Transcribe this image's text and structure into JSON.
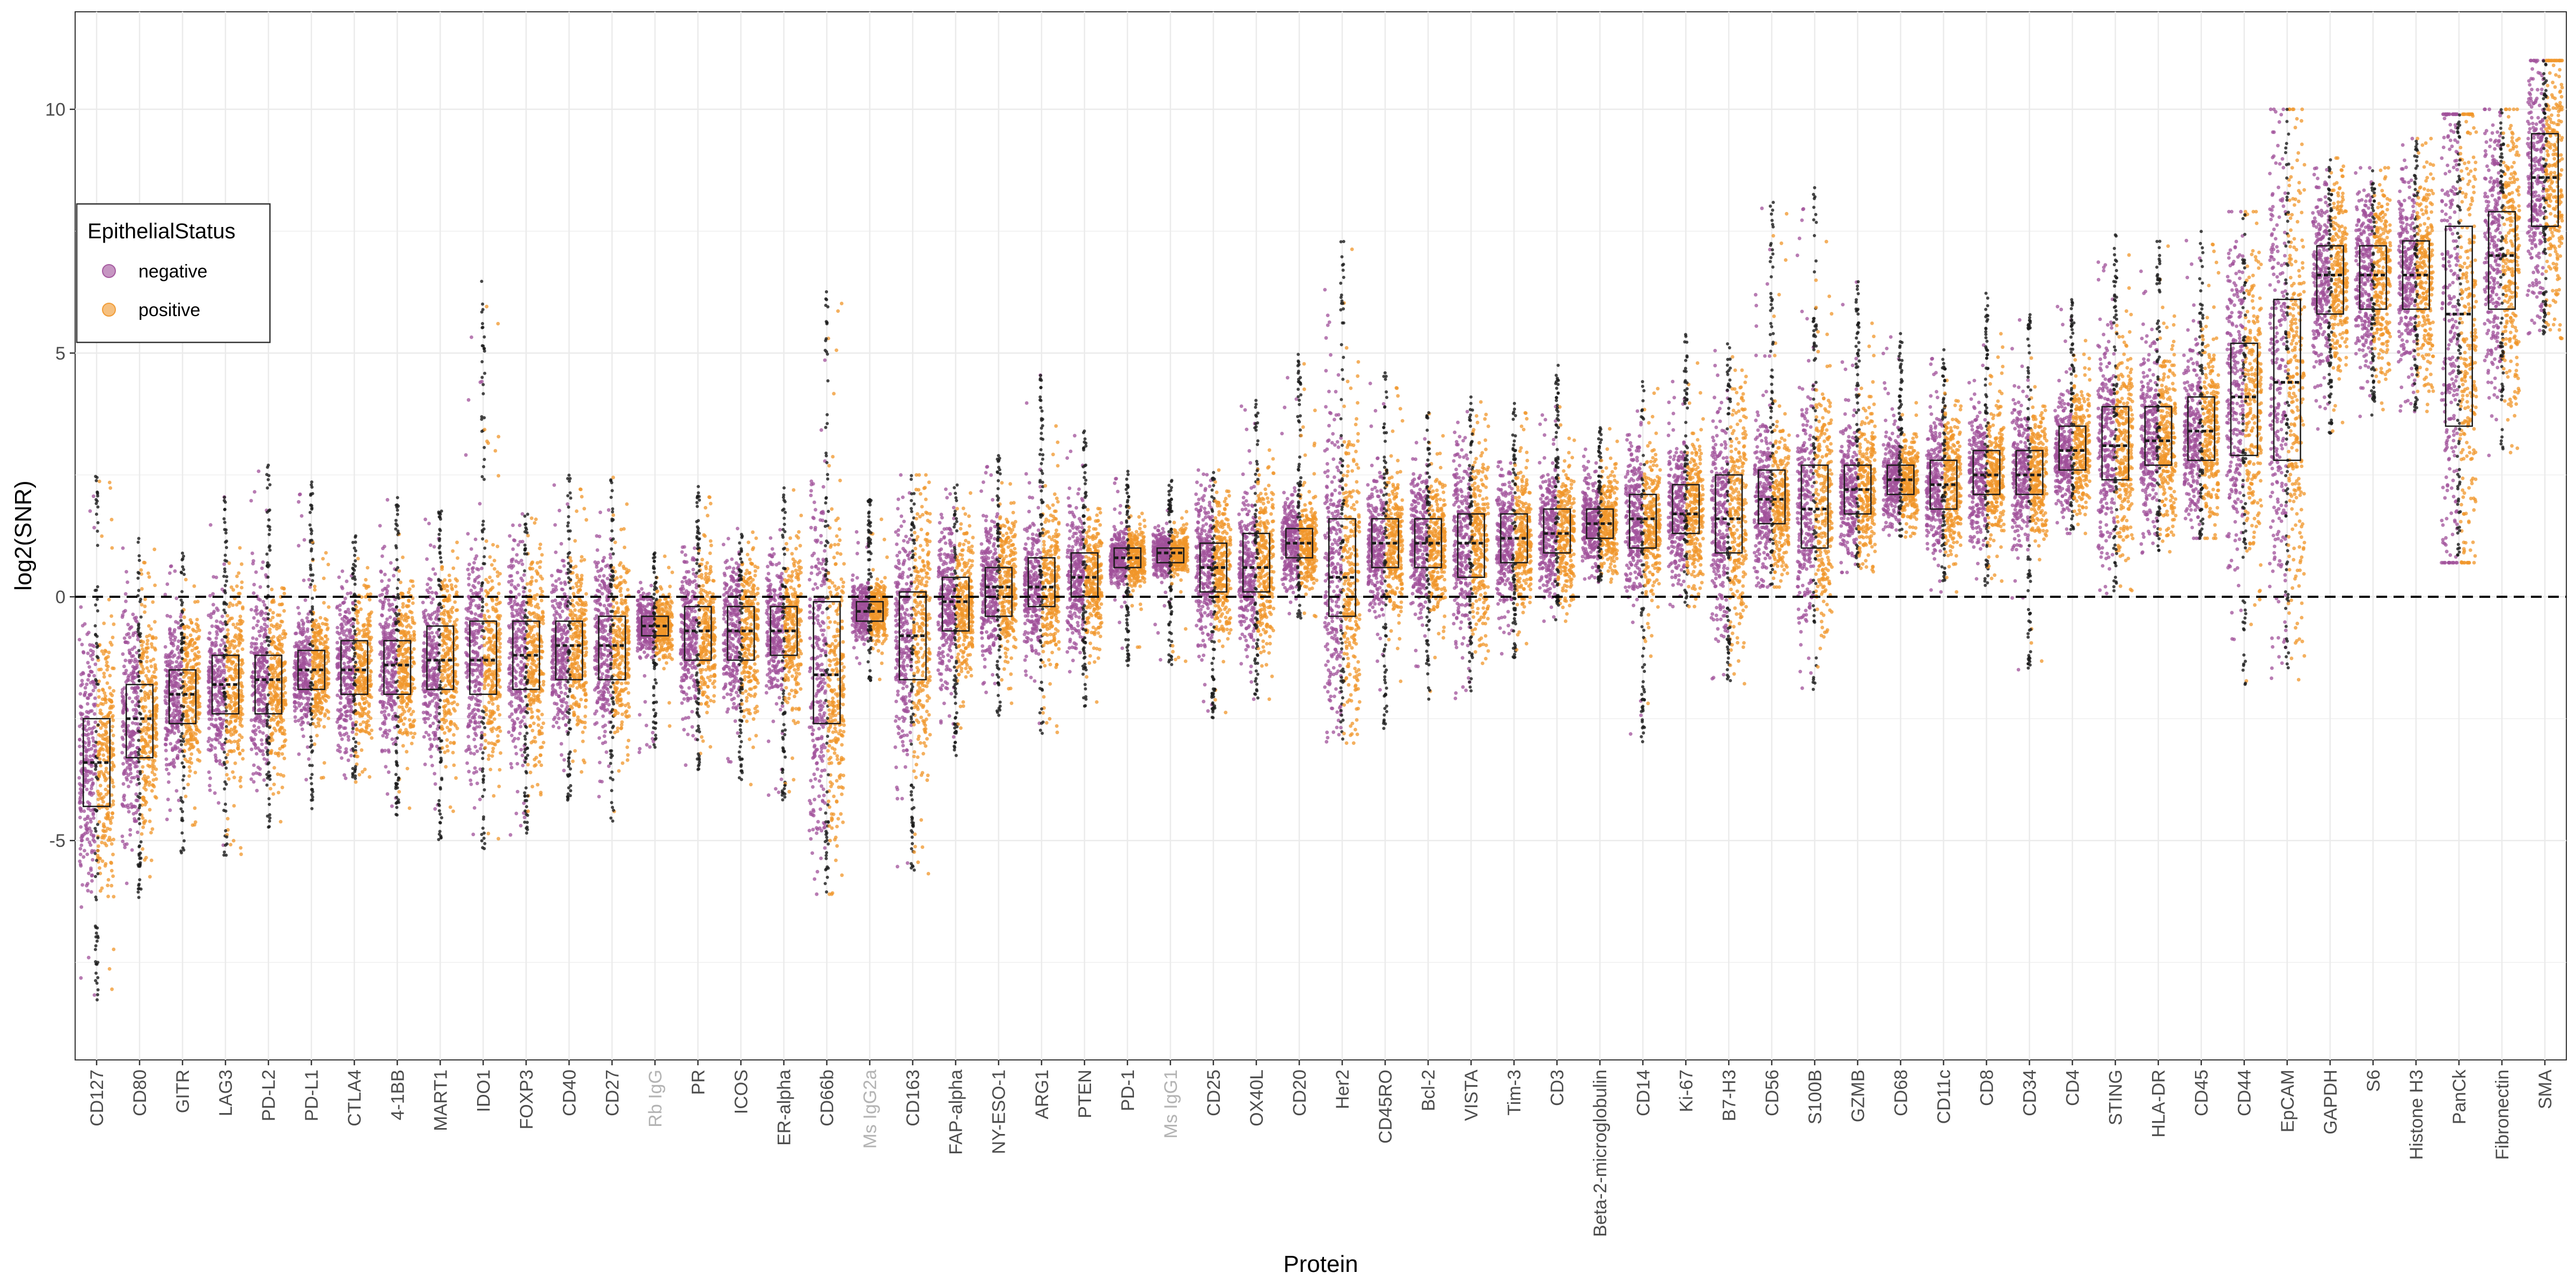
{
  "chart_data": {
    "type": "box-jitter",
    "xlabel": "Protein",
    "ylabel": "log2(SNR)",
    "ylim": [
      -9.5,
      12
    ],
    "yticks": [
      -5,
      0,
      5,
      10
    ],
    "ytick_labels": [
      "-5",
      "0",
      "5",
      "10"
    ],
    "reference_line": {
      "y": 0,
      "style": "dashed"
    },
    "grid": true,
    "legend": {
      "title": "EpithelialStatus",
      "placement": "left",
      "entries": [
        {
          "label": "negative",
          "color": "#a0509a"
        },
        {
          "label": "positive",
          "color": "#f0962a"
        }
      ]
    },
    "negative_control_color": "#b3b3b3",
    "categories": [
      {
        "name": "CD127",
        "q1": -4.3,
        "median": -3.4,
        "q3": -2.5,
        "min": -8.3,
        "max": 2.5
      },
      {
        "name": "CD80",
        "q1": -3.3,
        "median": -2.5,
        "q3": -1.8,
        "min": -6.2,
        "max": 1.2
      },
      {
        "name": "GITR",
        "q1": -2.6,
        "median": -2.0,
        "q3": -1.5,
        "min": -5.4,
        "max": 0.9
      },
      {
        "name": "LAG3",
        "q1": -2.4,
        "median": -1.8,
        "q3": -1.2,
        "min": -5.3,
        "max": 2.1
      },
      {
        "name": "PD-L2",
        "q1": -2.4,
        "median": -1.7,
        "q3": -1.2,
        "min": -4.8,
        "max": 2.7
      },
      {
        "name": "PD-L1",
        "q1": -1.9,
        "median": -1.5,
        "q3": -1.1,
        "min": -4.5,
        "max": 2.4
      },
      {
        "name": "CTLA4",
        "q1": -2.0,
        "median": -1.5,
        "q3": -0.9,
        "min": -3.8,
        "max": 1.4
      },
      {
        "name": "4-1BB",
        "q1": -2.0,
        "median": -1.4,
        "q3": -0.9,
        "min": -4.5,
        "max": 2.1
      },
      {
        "name": "MART1",
        "q1": -1.9,
        "median": -1.3,
        "q3": -0.6,
        "min": -5.1,
        "max": 1.8
      },
      {
        "name": "IDO1",
        "q1": -2.0,
        "median": -1.3,
        "q3": -0.5,
        "min": -5.2,
        "max": 6.6
      },
      {
        "name": "FOXP3",
        "q1": -1.9,
        "median": -1.2,
        "q3": -0.5,
        "min": -4.9,
        "max": 1.7
      },
      {
        "name": "CD40",
        "q1": -1.7,
        "median": -1.0,
        "q3": -0.5,
        "min": -4.3,
        "max": 2.5
      },
      {
        "name": "CD27",
        "q1": -1.7,
        "median": -1.0,
        "q3": -0.4,
        "min": -4.6,
        "max": 2.5
      },
      {
        "name": "Rb IgG",
        "q1": -0.8,
        "median": -0.6,
        "q3": -0.4,
        "min": -3.2,
        "max": 0.9,
        "control": true
      },
      {
        "name": "PR",
        "q1": -1.3,
        "median": -0.7,
        "q3": -0.2,
        "min": -3.6,
        "max": 2.3
      },
      {
        "name": "ICOS",
        "q1": -1.3,
        "median": -0.7,
        "q3": -0.2,
        "min": -4.0,
        "max": 1.4
      },
      {
        "name": "ER-alpha",
        "q1": -1.2,
        "median": -0.7,
        "q3": -0.2,
        "min": -4.2,
        "max": 2.3
      },
      {
        "name": "CD66b",
        "q1": -2.6,
        "median": -1.6,
        "q3": -0.1,
        "min": -6.1,
        "max": 6.4
      },
      {
        "name": "Ms IgG2a",
        "q1": -0.5,
        "median": -0.3,
        "q3": -0.1,
        "min": -1.8,
        "max": 2.0,
        "control": true
      },
      {
        "name": "CD163",
        "q1": -1.7,
        "median": -0.8,
        "q3": 0.1,
        "min": -5.7,
        "max": 2.5
      },
      {
        "name": "FAP-alpha",
        "q1": -0.7,
        "median": -0.1,
        "q3": 0.4,
        "min": -3.3,
        "max": 2.3
      },
      {
        "name": "NY-ESO-1",
        "q1": -0.4,
        "median": 0.2,
        "q3": 0.6,
        "min": -2.5,
        "max": 2.9
      },
      {
        "name": "ARG1",
        "q1": -0.2,
        "median": 0.2,
        "q3": 0.8,
        "min": -2.8,
        "max": 4.6
      },
      {
        "name": "PTEN",
        "q1": 0.0,
        "median": 0.4,
        "q3": 0.9,
        "min": -2.3,
        "max": 3.4
      },
      {
        "name": "PD-1",
        "q1": 0.6,
        "median": 0.8,
        "q3": 1.0,
        "min": -1.5,
        "max": 2.6
      },
      {
        "name": "Ms IgG1",
        "q1": 0.7,
        "median": 0.9,
        "q3": 1.0,
        "min": -1.4,
        "max": 2.5,
        "control": true
      },
      {
        "name": "CD25",
        "q1": 0.1,
        "median": 0.6,
        "q3": 1.1,
        "min": -2.5,
        "max": 2.6
      },
      {
        "name": "OX40L",
        "q1": 0.1,
        "median": 0.6,
        "q3": 1.3,
        "min": -2.1,
        "max": 4.1
      },
      {
        "name": "CD20",
        "q1": 0.8,
        "median": 1.1,
        "q3": 1.4,
        "min": -0.5,
        "max": 5.1
      },
      {
        "name": "Her2",
        "q1": -0.4,
        "median": 0.4,
        "q3": 1.6,
        "min": -3.0,
        "max": 7.3
      },
      {
        "name": "CD45RO",
        "q1": 0.6,
        "median": 1.1,
        "q3": 1.6,
        "min": -2.7,
        "max": 4.6
      },
      {
        "name": "Bcl-2",
        "q1": 0.6,
        "median": 1.1,
        "q3": 1.6,
        "min": -2.1,
        "max": 3.8
      },
      {
        "name": "VISTA",
        "q1": 0.4,
        "median": 1.1,
        "q3": 1.7,
        "min": -2.1,
        "max": 4.1
      },
      {
        "name": "Tim-3",
        "q1": 0.7,
        "median": 1.2,
        "q3": 1.7,
        "min": -1.3,
        "max": 4.0
      },
      {
        "name": "CD3",
        "q1": 0.9,
        "median": 1.3,
        "q3": 1.8,
        "min": -0.5,
        "max": 4.9
      },
      {
        "name": "Beta-2-microglobulin",
        "q1": 1.2,
        "median": 1.5,
        "q3": 1.8,
        "min": 0.3,
        "max": 3.5
      },
      {
        "name": "CD14",
        "q1": 1.0,
        "median": 1.6,
        "q3": 2.1,
        "min": -3.0,
        "max": 4.5
      },
      {
        "name": "Ki-67",
        "q1": 1.3,
        "median": 1.7,
        "q3": 2.3,
        "min": -0.2,
        "max": 5.4
      },
      {
        "name": "B7-H3",
        "q1": 0.9,
        "median": 1.6,
        "q3": 2.5,
        "min": -1.8,
        "max": 5.2
      },
      {
        "name": "CD56",
        "q1": 1.5,
        "median": 2.0,
        "q3": 2.6,
        "min": 0.2,
        "max": 8.1
      },
      {
        "name": "S100B",
        "q1": 1.0,
        "median": 1.8,
        "q3": 2.7,
        "min": -1.9,
        "max": 8.4
      },
      {
        "name": "GZMB",
        "q1": 1.7,
        "median": 2.2,
        "q3": 2.7,
        "min": 0.5,
        "max": 6.5
      },
      {
        "name": "CD68",
        "q1": 2.1,
        "median": 2.4,
        "q3": 2.7,
        "min": 1.2,
        "max": 5.4
      },
      {
        "name": "CD11c",
        "q1": 1.8,
        "median": 2.3,
        "q3": 2.8,
        "min": 0.1,
        "max": 5.1
      },
      {
        "name": "CD8",
        "q1": 2.1,
        "median": 2.5,
        "q3": 3.0,
        "min": 0.2,
        "max": 6.3
      },
      {
        "name": "CD34",
        "q1": 2.1,
        "median": 2.5,
        "q3": 3.0,
        "min": -1.5,
        "max": 5.8
      },
      {
        "name": "CD4",
        "q1": 2.6,
        "median": 3.0,
        "q3": 3.5,
        "min": 1.3,
        "max": 6.1
      },
      {
        "name": "STING",
        "q1": 2.4,
        "median": 3.1,
        "q3": 3.9,
        "min": 0.0,
        "max": 7.5
      },
      {
        "name": "HLA-DR",
        "q1": 2.7,
        "median": 3.2,
        "q3": 3.9,
        "min": 0.9,
        "max": 7.3
      },
      {
        "name": "CD45",
        "q1": 2.8,
        "median": 3.4,
        "q3": 4.1,
        "min": 1.2,
        "max": 7.5
      },
      {
        "name": "CD44",
        "q1": 2.9,
        "median": 4.1,
        "q3": 5.2,
        "min": -2.0,
        "max": 7.9
      },
      {
        "name": "EpCAM",
        "q1": 2.8,
        "median": 4.4,
        "q3": 6.1,
        "min": -1.7,
        "max": 10.0
      },
      {
        "name": "GAPDH",
        "q1": 5.8,
        "median": 6.6,
        "q3": 7.2,
        "min": 3.3,
        "max": 9.0
      },
      {
        "name": "S6",
        "q1": 5.9,
        "median": 6.6,
        "q3": 7.2,
        "min": 3.7,
        "max": 8.8
      },
      {
        "name": "Histone H3",
        "q1": 5.9,
        "median": 6.6,
        "q3": 7.3,
        "min": 3.8,
        "max": 9.4
      },
      {
        "name": "PanCk",
        "q1": 3.5,
        "median": 5.8,
        "q3": 7.6,
        "min": 0.7,
        "max": 9.9
      },
      {
        "name": "Fibronectin",
        "q1": 5.9,
        "median": 7.0,
        "q3": 7.9,
        "min": 2.9,
        "max": 10.0
      },
      {
        "name": "SMA",
        "q1": 7.6,
        "median": 8.6,
        "q3": 9.5,
        "min": 5.3,
        "max": 11.0
      }
    ]
  }
}
